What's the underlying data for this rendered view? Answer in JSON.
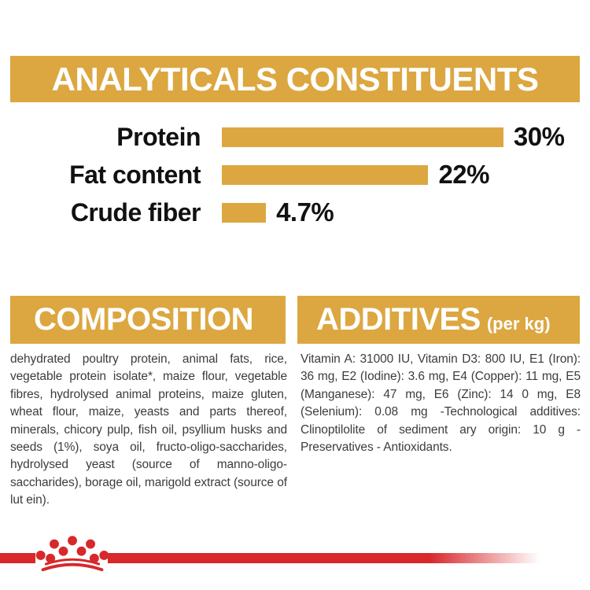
{
  "colors": {
    "gold": "#DCA741",
    "red": "#D7282B",
    "body_text": "#3C3C3C",
    "banner_text": "#FFFFFF",
    "chart_text": "#111111"
  },
  "header": {
    "title": "ANALYTICALS CONSTITUENTS"
  },
  "chart_data": {
    "type": "bar",
    "orientation": "horizontal",
    "categories": [
      "Protein",
      "Fat content",
      "Crude fiber"
    ],
    "values": [
      30,
      22,
      4.7
    ],
    "value_labels": [
      "30%",
      "22%",
      "4.7%"
    ],
    "bar_color": "#DCA741",
    "xlim": [
      0,
      30
    ],
    "legend": "none",
    "grid": false
  },
  "composition": {
    "title": "COMPOSITION",
    "body": "dehydrated poultry protein, animal fats, rice, vegetable protein isolate*, maize flour, vegetable fibres, hydrolysed animal proteins, maize gluten, wheat flour, maize, yeasts and parts thereof, minerals, chicory pulp, fish oil, psyllium husks and seeds (1%), soya oil, fructo-oligo-saccharides, hydrolysed yeast (source of manno-oligo-saccharides), borage oil, marigold extract (source of lut ein)."
  },
  "additives": {
    "title": "ADDITIVES",
    "title_suffix": "(per kg)",
    "body": "Vitamin A: 31000 IU, Vitamin D3: 800 IU, E1 (Iron): 36 mg, E2 (Iodine): 3.6 mg, E4 (Copper): 11 mg, E5 (Manganese): 47 mg, E6 (Zinc): 14 0 mg, E8 (Selenium): 0.08 mg -Technological additives: Clinoptilolite of sediment ary origin: 10 g - Preservatives - Antioxidants."
  },
  "footer": {
    "logo": "royal-canin-crown"
  }
}
